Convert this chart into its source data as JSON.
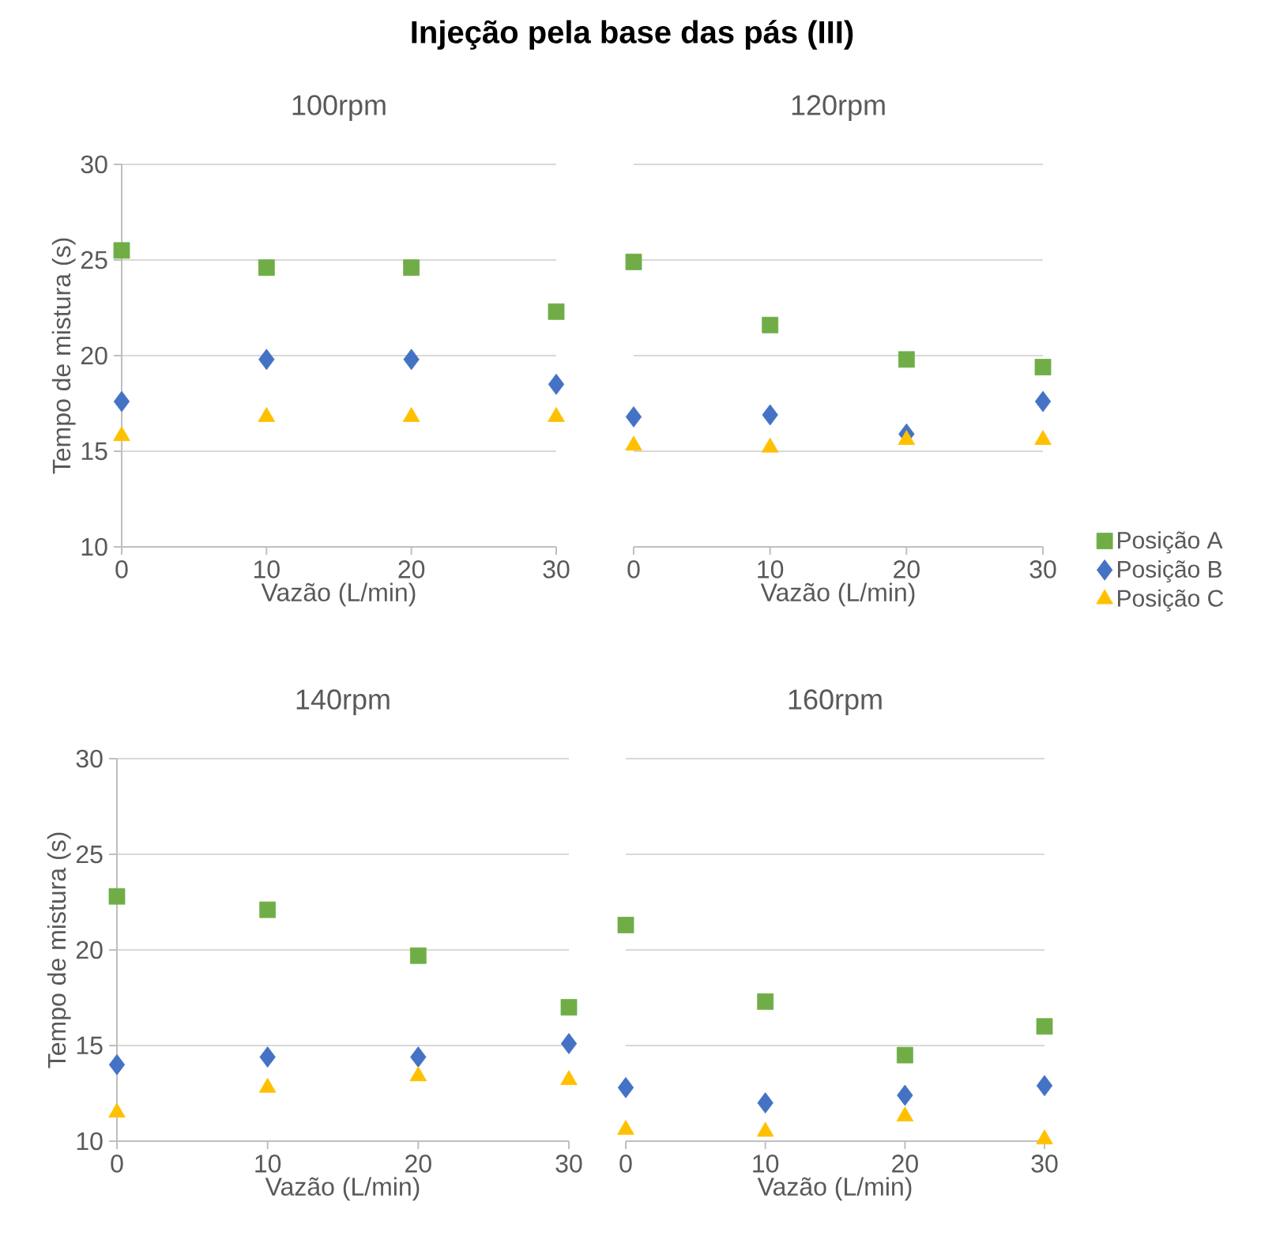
{
  "chart_data": [
    {
      "type": "scatter",
      "title": "Injeção pela base das pás (III)",
      "subtitle": "100rpm",
      "xlabel": "Vazão (L/min)",
      "ylabel": "Tempo de mistura (s)",
      "x": [
        0,
        10,
        20,
        30
      ],
      "xlim": [
        0,
        30
      ],
      "xticks": [
        0,
        10,
        20,
        30
      ],
      "ylim": [
        10,
        30
      ],
      "yticks": [
        10,
        15,
        20,
        25,
        30
      ],
      "grid": "y",
      "series": [
        {
          "color": "#70ad47",
          "marker": "square",
          "values": [
            25.5,
            24.6,
            24.6,
            22.3
          ]
        },
        {
          "color": "#4472c4",
          "marker": "diamond",
          "values": [
            17.6,
            19.8,
            19.8,
            18.5
          ]
        },
        {
          "color": "#ffc000",
          "marker": "triangle",
          "values": [
            15.8,
            16.8,
            16.8,
            16.8
          ]
        }
      ]
    },
    {
      "type": "scatter",
      "title": "120rpm",
      "xlabel": "Vazão (L/min)",
      "x": [
        0,
        10,
        20,
        30
      ],
      "xlim": [
        0,
        30
      ],
      "xticks": [
        0,
        10,
        20,
        30
      ],
      "ylim": [
        10,
        30
      ],
      "yticks": [
        10,
        15,
        20,
        25,
        30
      ],
      "grid": "y",
      "tick_labels": "x",
      "legend": "right",
      "series": [
        {
          "name": "Posição A",
          "color": "#70ad47",
          "marker": "square",
          "values": [
            24.9,
            21.6,
            19.8,
            19.4
          ]
        },
        {
          "name": "Posição B",
          "color": "#4472c4",
          "marker": "diamond",
          "values": [
            16.8,
            16.9,
            15.9,
            17.6
          ]
        },
        {
          "name": "Posição C",
          "color": "#ffc000",
          "marker": "triangle",
          "values": [
            15.3,
            15.2,
            15.6,
            15.6
          ]
        }
      ]
    },
    {
      "type": "scatter",
      "title": "140rpm",
      "xlabel": "Vazão (L/min)",
      "ylabel": "Tempo de mistura (s)",
      "x": [
        0,
        10,
        20,
        30
      ],
      "xlim": [
        0,
        30
      ],
      "xticks": [
        0,
        10,
        20,
        30
      ],
      "ylim": [
        10,
        30
      ],
      "yticks": [
        10,
        15,
        20,
        25,
        30
      ],
      "grid": "y",
      "series": [
        {
          "color": "#70ad47",
          "marker": "square",
          "values": [
            22.8,
            22.1,
            19.7,
            17.0
          ]
        },
        {
          "color": "#4472c4",
          "marker": "diamond",
          "values": [
            14.0,
            14.4,
            14.4,
            15.1
          ]
        },
        {
          "color": "#ffc000",
          "marker": "triangle",
          "values": [
            11.5,
            12.8,
            13.4,
            13.2
          ]
        }
      ]
    },
    {
      "type": "scatter",
      "title": "160rpm",
      "xlabel": "Vazão (L/min)",
      "x": [
        0,
        10,
        20,
        30
      ],
      "xlim": [
        0,
        30
      ],
      "xticks": [
        0,
        10,
        20,
        30
      ],
      "ylim": [
        10,
        30
      ],
      "yticks": [
        10,
        15,
        20,
        25,
        30
      ],
      "grid": "y",
      "tick_labels": "x",
      "series": [
        {
          "color": "#70ad47",
          "marker": "square",
          "values": [
            21.3,
            17.3,
            14.5,
            16.0
          ]
        },
        {
          "color": "#4472c4",
          "marker": "diamond",
          "values": [
            12.8,
            12.0,
            12.4,
            12.9
          ]
        },
        {
          "color": "#ffc000",
          "marker": "triangle",
          "values": [
            10.6,
            10.5,
            11.3,
            10.1
          ]
        }
      ]
    }
  ]
}
